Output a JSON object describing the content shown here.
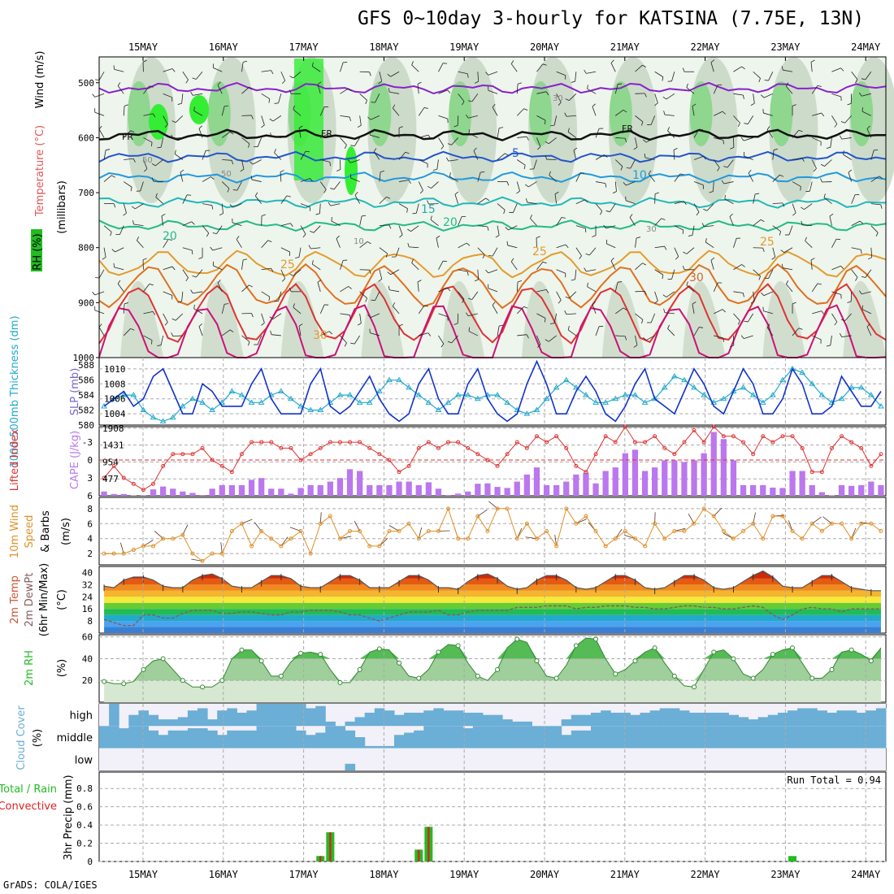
{
  "title": "GFS 0~10day 3-hourly for KATSINA (7.75E, 13N)",
  "footer": "GrADS: COLA/IGES",
  "colors": {
    "rh": "#22bb22",
    "temp": "#e65555",
    "wind": "#222222",
    "tick": "#000000",
    "cape": "#bb77ee",
    "li": "#dd3333",
    "slp": "#1133cc",
    "thick": "#22aacc",
    "ws": "#e0902a",
    "cloud": "#6baed6",
    "precip_total": "#22bb22",
    "precip_conv": "#dd2222"
  },
  "chart_data": [
    {
      "type": "area",
      "panel": "vertical-profile",
      "title": "",
      "x_dates": [
        "15MAY",
        "16MAY",
        "17MAY",
        "18MAY",
        "19MAY",
        "20MAY",
        "21MAY",
        "22MAY",
        "23MAY",
        "24MAY"
      ],
      "y_ticks": [
        500,
        600,
        700,
        800,
        900,
        1000
      ],
      "ylabel": "(millibars)",
      "legend": [
        "RH (%)",
        "Temperature (°C)",
        "Wind (m/s)"
      ],
      "isotherms": [
        {
          "value": "FR"
        },
        {
          "value": "5"
        },
        {
          "value": "10"
        },
        {
          "value": "15"
        },
        {
          "value": "20"
        },
        {
          "value": "25"
        },
        {
          "value": "30"
        }
      ],
      "rh_labels": [
        "30",
        "50",
        "60",
        "10"
      ]
    },
    {
      "type": "line",
      "panel": "thickness-slp",
      "ylabel_left": "1000-500mb Thickness (dm)",
      "ylabel_right": "SLP (mb)",
      "left_ticks": [
        580,
        582,
        584,
        586,
        588
      ],
      "right_ticks": [
        1004,
        1006,
        1008,
        1010
      ],
      "series": [
        {
          "name": "SLP (mb)",
          "values": [
            1005,
            1006,
            1007,
            1005,
            1006,
            1009,
            1010,
            1007,
            1004,
            1004,
            1008,
            1007,
            1005,
            1005,
            1005,
            1008,
            1010,
            1006,
            1004,
            1004,
            1004,
            1008,
            1010,
            1005,
            1004,
            1005,
            1007,
            1009,
            1006,
            1004,
            1003,
            1004,
            1008,
            1010,
            1006,
            1004,
            1004,
            1008,
            1010,
            1006,
            1004,
            1003,
            1004,
            1008,
            1011,
            1008,
            1004,
            1004,
            1007,
            1009,
            1007,
            1004,
            1003,
            1005,
            1008,
            1010,
            1006,
            1005,
            1004,
            1007,
            1010,
            1008,
            1005,
            1004,
            1007,
            1010,
            1008,
            1004,
            1004,
            1006,
            1010,
            1008,
            1004,
            1004,
            1005,
            1009,
            1007,
            1005,
            1005,
            1007
          ]
        },
        {
          "name": "1000-500mb Thickness (dm)",
          "values": [
            582.5,
            583.5,
            584,
            584,
            582,
            581,
            580.5,
            581,
            582.5,
            583.5,
            583,
            582,
            583,
            584.5,
            584,
            583,
            583,
            584,
            584.5,
            583.5,
            582.5,
            582,
            582,
            583,
            584,
            584,
            583,
            583,
            584.5,
            586,
            586,
            585,
            584,
            583,
            582,
            583,
            584,
            584,
            583.5,
            584,
            584,
            583,
            582,
            581.5,
            582,
            583.5,
            585,
            586,
            585,
            584,
            583,
            583,
            583.5,
            584,
            584,
            583,
            583.5,
            585,
            586.5,
            586,
            585,
            584,
            583,
            583.5,
            584.5,
            585,
            584,
            583,
            584,
            586,
            587.5,
            587,
            585.5,
            584,
            583,
            583.5,
            585,
            585,
            584,
            582.5
          ]
        }
      ]
    },
    {
      "type": "bar",
      "panel": "li-cape",
      "ylabel_left": "Lifted Index",
      "ylabel_right": "CAPE (J/kg)",
      "left_ticks": [
        -3,
        0,
        3,
        6
      ],
      "right_ticks": [
        477,
        954,
        1431,
        1908
      ],
      "series": [
        {
          "name": "Lifted Index",
          "values": [
            3,
            1,
            3,
            4,
            5,
            4,
            1,
            -1,
            -1,
            -1,
            -2,
            0,
            1,
            2,
            -1,
            -3,
            -3,
            -3,
            -2,
            -2,
            0,
            -1,
            -2,
            -3,
            -3,
            -3,
            -3,
            -2,
            -1,
            0,
            2,
            1,
            -2,
            -3,
            -2,
            -3,
            -3,
            -2,
            -1,
            0,
            1,
            -1,
            -3,
            -2,
            -4,
            -3,
            -4,
            -2,
            1,
            2,
            -1,
            -4,
            -3,
            -6,
            -3,
            -3,
            -4,
            -2,
            -1,
            -3,
            -5,
            -3,
            -6,
            -4,
            -4,
            -3,
            -1,
            -4,
            -3,
            -4,
            -4,
            -2,
            2,
            2,
            -2,
            -4,
            -3,
            -2,
            1,
            -1
          ]
        },
        {
          "name": "CAPE (J/kg)",
          "values": [
            120,
            50,
            50,
            10,
            10,
            180,
            260,
            200,
            120,
            80,
            20,
            200,
            300,
            300,
            300,
            450,
            500,
            200,
            200,
            60,
            220,
            300,
            300,
            400,
            500,
            750,
            700,
            300,
            300,
            300,
            400,
            400,
            300,
            380,
            200,
            20,
            60,
            120,
            340,
            350,
            250,
            220,
            400,
            600,
            800,
            300,
            300,
            400,
            600,
            650,
            350,
            700,
            800,
            1200,
            1300,
            700,
            800,
            1000,
            1000,
            950,
            1000,
            1200,
            1800,
            1600,
            1000,
            300,
            300,
            300,
            230,
            220,
            700,
            700,
            300,
            100,
            10,
            300,
            280,
            300,
            400,
            300
          ]
        }
      ]
    },
    {
      "type": "line",
      "panel": "wind10m",
      "ylabel": "10m Wind Speed & Barbs (m/s)",
      "y_ticks": [
        2,
        4,
        6,
        8
      ],
      "series": [
        {
          "name": "10m Wind Speed",
          "values": [
            2,
            2,
            2,
            2.5,
            3,
            3,
            4,
            4,
            4.5,
            2,
            1,
            2,
            2,
            5,
            6,
            3,
            5,
            4,
            3,
            4,
            5,
            2,
            6,
            7,
            4,
            5,
            5,
            3,
            3,
            5,
            5,
            6,
            4,
            5,
            5,
            8,
            4,
            4,
            7,
            5,
            8,
            8,
            4,
            6,
            4,
            5,
            3,
            8,
            6,
            7,
            5,
            3,
            4,
            5,
            4,
            3,
            6,
            4,
            5,
            5,
            6,
            8,
            7,
            5,
            4,
            5,
            6,
            4,
            7,
            7,
            5,
            4,
            6,
            5,
            6,
            6,
            4,
            6,
            6,
            5
          ]
        }
      ]
    },
    {
      "type": "line",
      "panel": "temp-dewpoint",
      "ylabel": "2m Temp 2m DewPt (6hr Min/Max) (°C)",
      "y_ticks": [
        8,
        16,
        24,
        32,
        40
      ],
      "series": [
        {
          "name": "2m Temp",
          "values": [
            31,
            30,
            35,
            37,
            37,
            35,
            31,
            30,
            30,
            35,
            38,
            39,
            36,
            31,
            30,
            30,
            34,
            38,
            38,
            36,
            31,
            30,
            30,
            34,
            38,
            38,
            35,
            30,
            30,
            30,
            34,
            38,
            38,
            35,
            30,
            30,
            29,
            34,
            38,
            39,
            36,
            31,
            29,
            30,
            35,
            38,
            38,
            35,
            30,
            29,
            30,
            34,
            38,
            38,
            35,
            30,
            29,
            30,
            34,
            38,
            38,
            35,
            30,
            29,
            30,
            34,
            38,
            41,
            37,
            31,
            30,
            30,
            34,
            38,
            38,
            34,
            30,
            29,
            28,
            28
          ]
        },
        {
          "name": "2m DewPt",
          "values": [
            9,
            7,
            5,
            5,
            12,
            12,
            10,
            10,
            13,
            15,
            15,
            15,
            13,
            13,
            14,
            14,
            13,
            12,
            12,
            14,
            14,
            15,
            15,
            15,
            14,
            12,
            12,
            10,
            8,
            10,
            12,
            14,
            14,
            14,
            15,
            12,
            12,
            14,
            15,
            15,
            15,
            15,
            17,
            17,
            17,
            18,
            18,
            18,
            16,
            17,
            17,
            18,
            18,
            18,
            17,
            17,
            16,
            16,
            17,
            18,
            18,
            17,
            17,
            16,
            16,
            17,
            18,
            17,
            12,
            9,
            12,
            16,
            17,
            16,
            16,
            14,
            16,
            16,
            16,
            16
          ]
        }
      ]
    },
    {
      "type": "line",
      "panel": "rh2m",
      "ylabel": "2m RH (%)",
      "y_ticks": [
        20,
        40,
        60
      ],
      "series": [
        {
          "name": "2m RH",
          "values": [
            19,
            17,
            17,
            19,
            30,
            38,
            40,
            30,
            20,
            14,
            14,
            14,
            20,
            40,
            48,
            48,
            38,
            24,
            24,
            37,
            45,
            46,
            44,
            30,
            18,
            18,
            30,
            46,
            49,
            48,
            36,
            24,
            22,
            30,
            46,
            53,
            52,
            36,
            24,
            20,
            30,
            50,
            58,
            55,
            38,
            24,
            22,
            34,
            52,
            59,
            58,
            40,
            26,
            30,
            38,
            46,
            50,
            36,
            24,
            15,
            14,
            30,
            46,
            48,
            40,
            26,
            22,
            30,
            44,
            48,
            50,
            36,
            22,
            22,
            30,
            46,
            48,
            44,
            38,
            50
          ]
        }
      ]
    },
    {
      "type": "bar",
      "panel": "cloud-cover",
      "ylabel": "Cloud Cover (%)",
      "levels": [
        "high",
        "middle",
        "low"
      ],
      "series": [
        {
          "name": "high",
          "values": [
            0,
            1,
            0,
            0.5,
            0.7,
            0.5,
            0.3,
            0.3,
            0.4,
            0.7,
            0.8,
            0.3,
            0.7,
            0.8,
            0.6,
            0.7,
            1,
            1,
            1,
            1,
            1,
            0.8,
            0.9,
            0.2,
            0,
            0.2,
            0.4,
            0.6,
            0.8,
            0.7,
            0.5,
            0.6,
            0.6,
            0.7,
            0.8,
            0.7,
            0.7,
            0.6,
            0.6,
            0.5,
            0.5,
            0.3,
            0.2,
            0.2,
            0,
            0,
            0,
            0.3,
            0.5,
            0.5,
            0.6,
            0.7,
            0.6,
            0.6,
            0.5,
            0.6,
            0.7,
            0.8,
            0.8,
            0.7,
            0.6,
            0.6,
            0.6,
            0.6,
            0.5,
            0.4,
            0.3,
            0.4,
            0.5,
            0.6,
            0.7,
            0.8,
            0.8,
            0.7,
            0.6,
            0.7,
            0.7,
            0.6,
            0.7,
            0.8
          ]
        },
        {
          "name": "middle",
          "values": [
            1,
            1,
            0.9,
            1,
            1,
            0.8,
            0.6,
            0.8,
            0.8,
            0.9,
            0.9,
            0.8,
            0.6,
            0.8,
            0.8,
            0.8,
            1,
            1,
            1,
            1,
            0.8,
            0.6,
            0.7,
            1,
            1,
            0.8,
            0.5,
            0.1,
            0.1,
            0.1,
            0.6,
            0.7,
            0.8,
            1,
            1,
            1,
            1,
            0.9,
            1,
            1,
            1,
            1,
            1,
            1,
            1,
            1,
            1,
            0.6,
            0.8,
            0.8,
            1,
            1,
            1,
            1,
            1,
            1,
            1,
            1,
            1,
            1,
            1,
            1,
            1,
            1,
            1,
            1,
            1,
            1,
            1,
            1,
            1,
            1,
            1,
            1,
            1,
            1,
            1,
            1,
            1,
            1
          ]
        },
        {
          "name": "low",
          "values": [
            0,
            0,
            0,
            0,
            0,
            0,
            0,
            0,
            0,
            0,
            0,
            0,
            0,
            0,
            0,
            0,
            0,
            0,
            0,
            0,
            0,
            0,
            0,
            0,
            0,
            0.3,
            0,
            0,
            0,
            0,
            0,
            0,
            0,
            0,
            0,
            0,
            0,
            0,
            0,
            0,
            0,
            0,
            0,
            0,
            0,
            0,
            0,
            0,
            0,
            0,
            0,
            0,
            0,
            0,
            0,
            0,
            0,
            0,
            0,
            0,
            0,
            0,
            0,
            0,
            0,
            0,
            0,
            0,
            0,
            0,
            0,
            0,
            0,
            0,
            0,
            0,
            0,
            0,
            0,
            0
          ]
        }
      ]
    },
    {
      "type": "bar",
      "panel": "precip",
      "ylabel": "3hr Precip (mm)",
      "legend": [
        "Total / Rain",
        "Convective"
      ],
      "y_ticks": [
        0,
        0.2,
        0.4,
        0.6,
        0.8
      ],
      "run_total": "Run Total = 0.94",
      "series": [
        {
          "name": "Total / Rain",
          "points": [
            {
              "i": 22,
              "v": 0.06
            },
            {
              "i": 23,
              "v": 0.32
            },
            {
              "i": 32,
              "v": 0.13
            },
            {
              "i": 33,
              "v": 0.38
            },
            {
              "i": 70,
              "v": 0.06
            }
          ]
        },
        {
          "name": "Convective",
          "points": [
            {
              "i": 22,
              "v": 0.06
            },
            {
              "i": 23,
              "v": 0.32
            },
            {
              "i": 32,
              "v": 0.13
            },
            {
              "i": 33,
              "v": 0.38
            }
          ]
        }
      ]
    }
  ]
}
